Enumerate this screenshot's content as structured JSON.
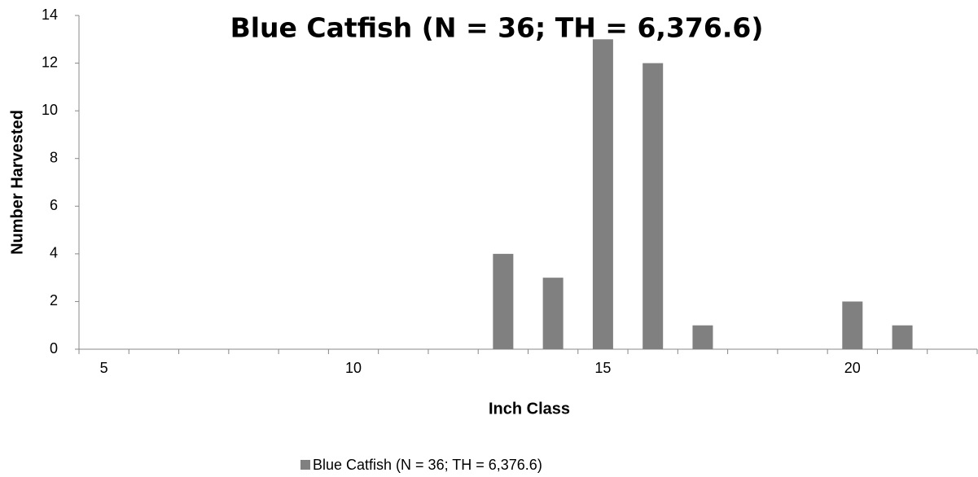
{
  "chart_data": {
    "type": "bar",
    "title": "Blue Catfish (N = 36; TH = 6,376.6)",
    "x_label": "Inch Class",
    "y_label": "Number Harvested",
    "categories": [
      "5",
      null,
      null,
      null,
      null,
      "10",
      null,
      null,
      null,
      null,
      "15",
      null,
      null,
      null,
      null,
      "20",
      null,
      null
    ],
    "series": [
      {
        "name": "Blue Catfish (N = 36; TH = 6,376.6)",
        "color": "#808080",
        "values": [
          0,
          0,
          0,
          0,
          0,
          0,
          0,
          0,
          4,
          3,
          13,
          12,
          1,
          0,
          0,
          2,
          1,
          0
        ]
      }
    ],
    "ylim": [
      0,
      14
    ],
    "yticks": [
      0,
      2,
      4,
      6,
      8,
      10,
      12,
      14
    ],
    "grid": false,
    "legend": "bottom"
  }
}
